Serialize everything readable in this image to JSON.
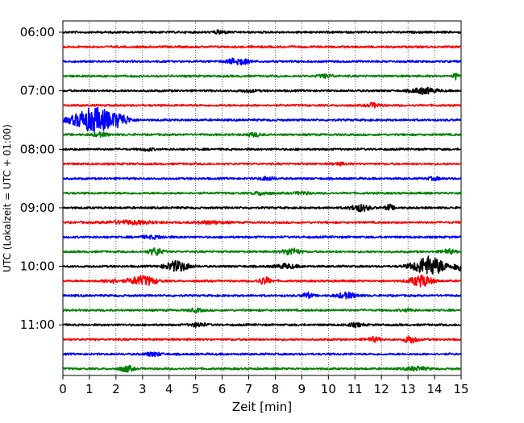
{
  "chart_data": {
    "type": "line",
    "title": "",
    "xlabel": "Zeit  [min]",
    "ylabel": "UTC (Lokalzeit = UTC + 01:00)",
    "xlim": [
      0,
      15
    ],
    "x_ticks": [
      "0",
      "1",
      "2",
      "3",
      "4",
      "5",
      "6",
      "7",
      "8",
      "9",
      "10",
      "11",
      "12",
      "13",
      "14",
      "15"
    ],
    "y_tick_labels": [
      "06:00",
      "07:00",
      "08:00",
      "09:00",
      "10:00",
      "11:00"
    ],
    "grid": "vertical dotted lines at each minute",
    "trace_interval_minutes": 15,
    "color_cycle": [
      "#000000",
      "#ff0000",
      "#0000ff",
      "#008000"
    ],
    "series": [
      {
        "start": "06:00",
        "color": "#000000",
        "events": [
          {
            "t": 5.9,
            "amp": 0.6,
            "dur": 0.5
          }
        ]
      },
      {
        "start": "06:15",
        "color": "#ff0000",
        "events": []
      },
      {
        "start": "06:30",
        "color": "#0000ff",
        "events": [
          {
            "t": 6.6,
            "amp": 1.3,
            "dur": 0.8
          }
        ]
      },
      {
        "start": "06:45",
        "color": "#008000",
        "events": [
          {
            "t": 9.9,
            "amp": 0.6,
            "dur": 0.6
          },
          {
            "t": 14.8,
            "amp": 1.2,
            "dur": 0.2
          }
        ]
      },
      {
        "start": "07:00",
        "color": "#000000",
        "events": [
          {
            "t": 13.6,
            "amp": 1.1,
            "dur": 0.9
          },
          {
            "t": 7.0,
            "amp": 0.4,
            "dur": 0.6
          }
        ]
      },
      {
        "start": "07:15",
        "color": "#ff0000",
        "events": [
          {
            "t": 11.7,
            "amp": 0.8,
            "dur": 0.5
          }
        ]
      },
      {
        "start": "07:30",
        "color": "#0000ff",
        "events": [
          {
            "t": 1.2,
            "amp": 4.6,
            "dur": 1.6
          },
          {
            "t": 2.2,
            "amp": 1.5,
            "dur": 0.6
          }
        ]
      },
      {
        "start": "07:45",
        "color": "#008000",
        "events": [
          {
            "t": 1.4,
            "amp": 0.7,
            "dur": 0.6
          },
          {
            "t": 7.2,
            "amp": 0.6,
            "dur": 0.6
          }
        ]
      },
      {
        "start": "08:00",
        "color": "#000000",
        "events": [
          {
            "t": 3.2,
            "amp": 0.5,
            "dur": 0.4
          }
        ]
      },
      {
        "start": "08:15",
        "color": "#ff0000",
        "events": [
          {
            "t": 10.4,
            "amp": 0.4,
            "dur": 0.5
          }
        ]
      },
      {
        "start": "08:30",
        "color": "#0000ff",
        "events": [
          {
            "t": 7.7,
            "amp": 0.6,
            "dur": 0.6
          },
          {
            "t": 14.0,
            "amp": 0.5,
            "dur": 0.5
          }
        ]
      },
      {
        "start": "08:45",
        "color": "#008000",
        "events": [
          {
            "t": 7.5,
            "amp": 0.6,
            "dur": 0.6
          },
          {
            "t": 9.0,
            "amp": 0.5,
            "dur": 0.5
          }
        ]
      },
      {
        "start": "09:00",
        "color": "#000000",
        "events": [
          {
            "t": 11.2,
            "amp": 1.3,
            "dur": 0.7
          },
          {
            "t": 12.3,
            "amp": 1.1,
            "dur": 0.3
          }
        ]
      },
      {
        "start": "09:15",
        "color": "#ff0000",
        "events": [
          {
            "t": 2.5,
            "amp": 0.6,
            "dur": 1.8
          },
          {
            "t": 5.5,
            "amp": 0.5,
            "dur": 1.2
          }
        ]
      },
      {
        "start": "09:30",
        "color": "#0000ff",
        "events": [
          {
            "t": 3.4,
            "amp": 0.5,
            "dur": 1.0
          }
        ]
      },
      {
        "start": "09:45",
        "color": "#008000",
        "events": [
          {
            "t": 3.5,
            "amp": 1.4,
            "dur": 0.5
          },
          {
            "t": 8.6,
            "amp": 1.3,
            "dur": 0.6
          },
          {
            "t": 14.5,
            "amp": 0.8,
            "dur": 0.5
          }
        ]
      },
      {
        "start": "10:00",
        "color": "#000000",
        "events": [
          {
            "t": 4.3,
            "amp": 1.9,
            "dur": 0.9
          },
          {
            "t": 13.8,
            "amp": 3.6,
            "dur": 1.2
          },
          {
            "t": 8.4,
            "amp": 0.8,
            "dur": 0.8
          },
          {
            "t": 14.9,
            "amp": 1.8,
            "dur": 0.3
          }
        ]
      },
      {
        "start": "10:15",
        "color": "#ff0000",
        "events": [
          {
            "t": 3.0,
            "amp": 1.8,
            "dur": 1.0
          },
          {
            "t": 7.6,
            "amp": 1.3,
            "dur": 0.5
          },
          {
            "t": 13.5,
            "amp": 2.1,
            "dur": 0.8
          },
          {
            "t": 1.8,
            "amp": 0.7,
            "dur": 0.5
          }
        ]
      },
      {
        "start": "10:30",
        "color": "#0000ff",
        "events": [
          {
            "t": 9.2,
            "amp": 1.0,
            "dur": 0.4
          },
          {
            "t": 10.7,
            "amp": 1.0,
            "dur": 0.8
          }
        ]
      },
      {
        "start": "10:45",
        "color": "#008000",
        "events": [
          {
            "t": 5.0,
            "amp": 0.6,
            "dur": 0.5
          },
          {
            "t": 13.0,
            "amp": 0.4,
            "dur": 0.5
          }
        ]
      },
      {
        "start": "11:00",
        "color": "#000000",
        "events": [
          {
            "t": 5.1,
            "amp": 0.7,
            "dur": 0.6
          },
          {
            "t": 11.0,
            "amp": 0.6,
            "dur": 0.6
          }
        ]
      },
      {
        "start": "11:15",
        "color": "#ff0000",
        "events": [
          {
            "t": 11.7,
            "amp": 0.8,
            "dur": 0.5
          },
          {
            "t": 13.1,
            "amp": 1.3,
            "dur": 0.5
          }
        ]
      },
      {
        "start": "11:30",
        "color": "#0000ff",
        "events": [
          {
            "t": 3.4,
            "amp": 0.7,
            "dur": 0.6
          }
        ]
      },
      {
        "start": "11:45",
        "color": "#008000",
        "events": [
          {
            "t": 2.4,
            "amp": 1.1,
            "dur": 0.5
          },
          {
            "t": 13.3,
            "amp": 0.7,
            "dur": 0.8
          }
        ]
      }
    ]
  }
}
